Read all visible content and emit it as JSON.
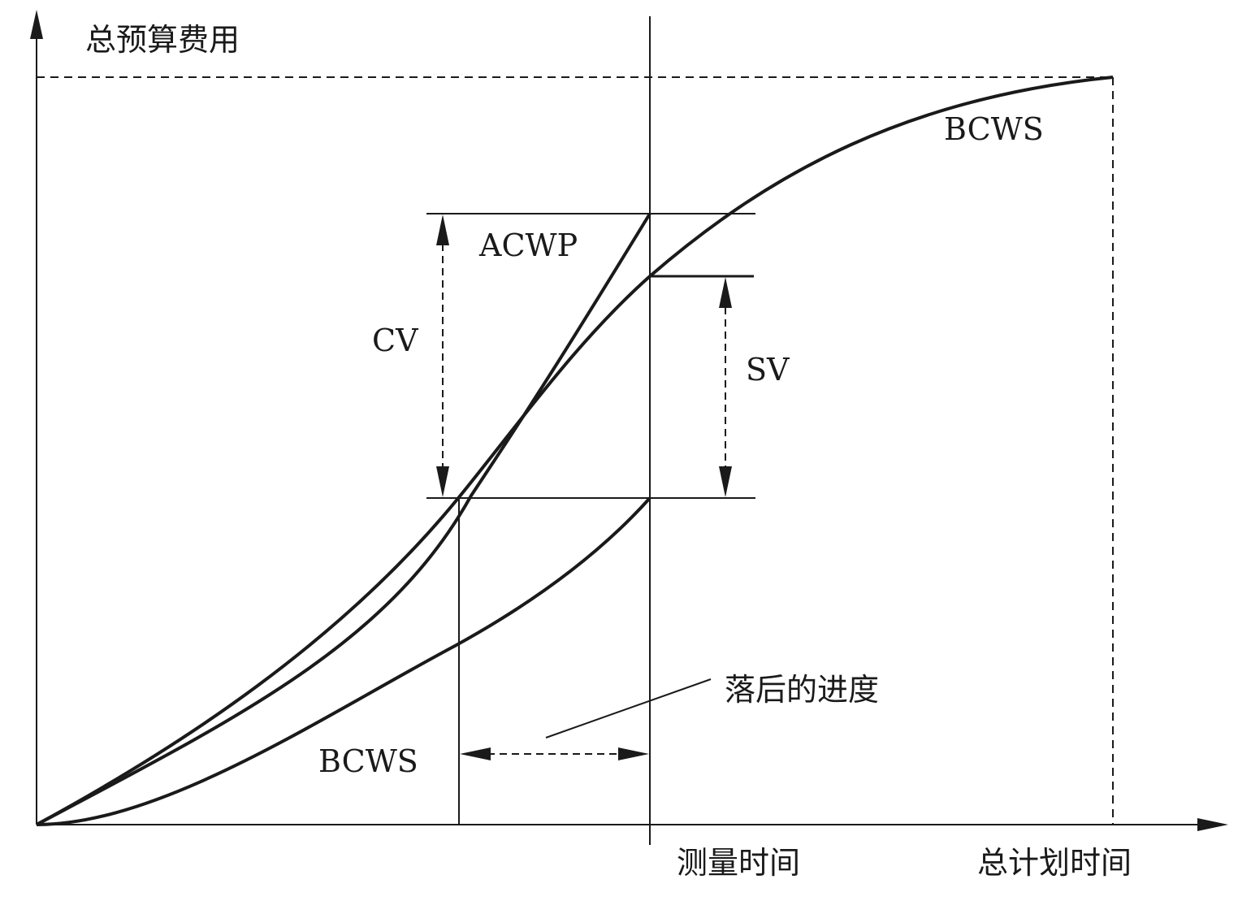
{
  "labels": {
    "y_axis_title": "总预算费用",
    "bcws_top": "BCWS",
    "acwp": "ACWP",
    "cv": "CV",
    "sv": "SV",
    "lag_label": "落后的进度",
    "bcws_bottom": "BCWS",
    "measure_time": "测量时间",
    "total_plan_time": "总计划时间"
  },
  "colors": {
    "ink": "#1a1a1a",
    "background": "#ffffff"
  }
}
